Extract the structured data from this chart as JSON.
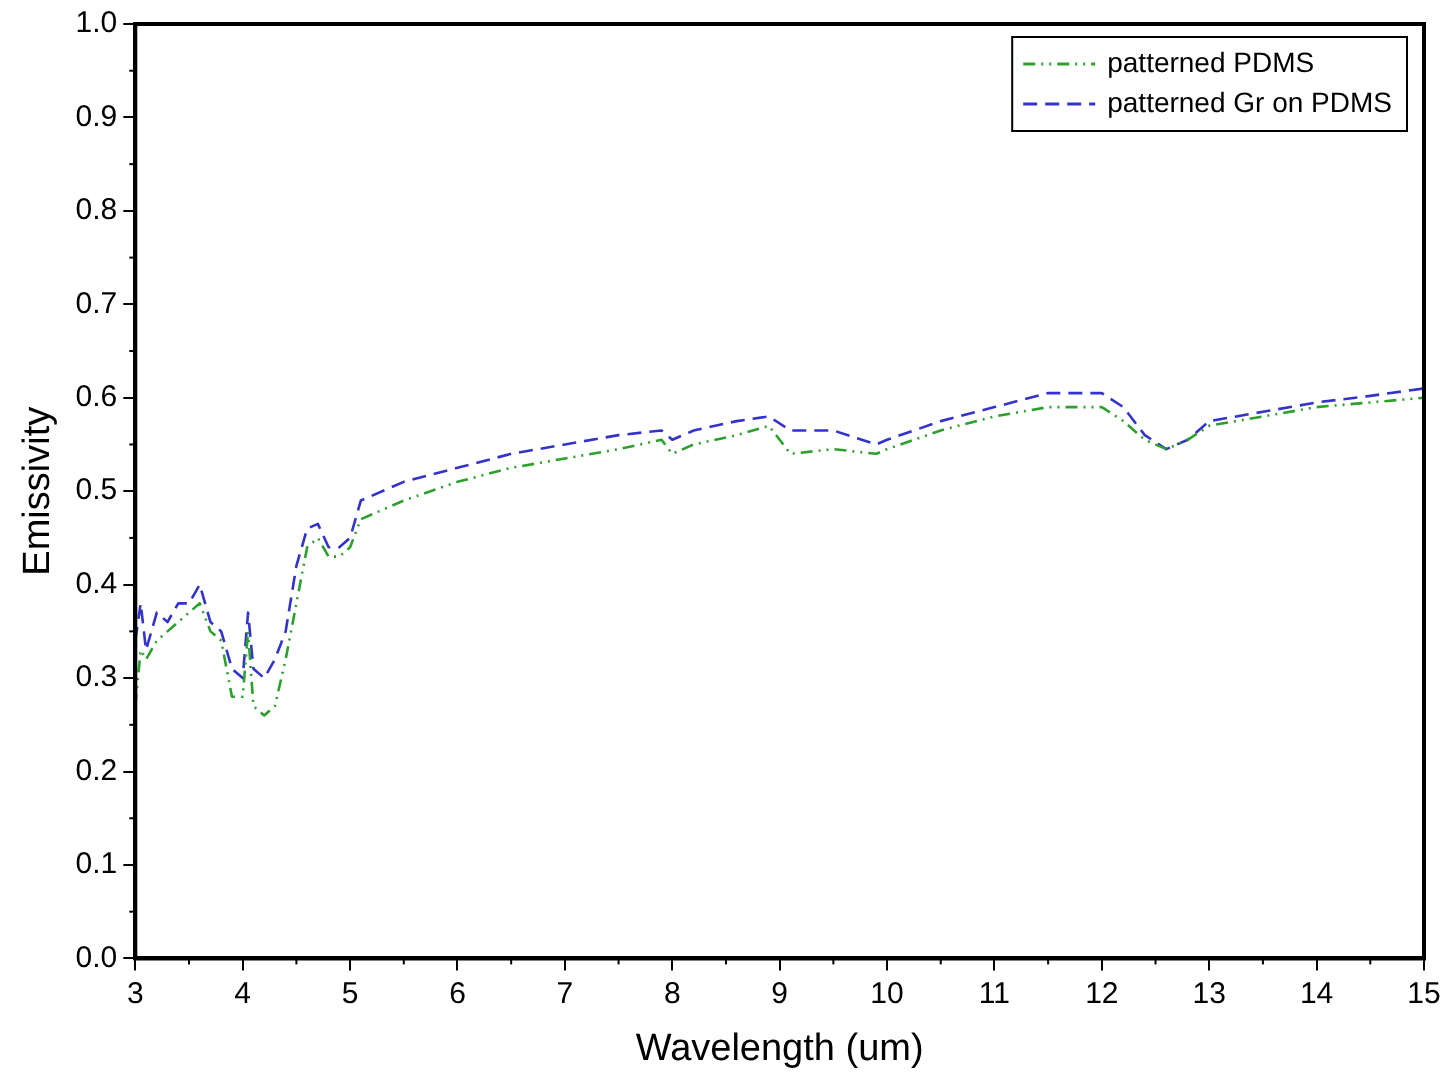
{
  "chart_data": {
    "type": "line",
    "xlabel": "Wavelength (um)",
    "ylabel": "Emissivity",
    "x": [
      3.0,
      3.05,
      3.1,
      3.2,
      3.3,
      3.4,
      3.5,
      3.6,
      3.7,
      3.8,
      3.9,
      4.0,
      4.05,
      4.1,
      4.2,
      4.3,
      4.4,
      4.5,
      4.6,
      4.7,
      4.8,
      4.9,
      5.0,
      5.1,
      5.5,
      6,
      6.5,
      7,
      7.5,
      7.9,
      8.0,
      8.2,
      8.6,
      8.9,
      9.1,
      9.5,
      9.9,
      10.0,
      10.5,
      11,
      11.5,
      12,
      12.2,
      12.4,
      12.6,
      12.8,
      13.0,
      13.5,
      14,
      14.5,
      15
    ],
    "series": [
      {
        "name": "patterned PDMS",
        "color": "#2ca02c",
        "line_style": "dotted",
        "values": [
          0.27,
          0.33,
          0.32,
          0.34,
          0.35,
          0.36,
          0.37,
          0.38,
          0.35,
          0.34,
          0.28,
          0.28,
          0.35,
          0.27,
          0.26,
          0.27,
          0.32,
          0.38,
          0.44,
          0.45,
          0.43,
          0.43,
          0.44,
          0.47,
          0.49,
          0.51,
          0.525,
          0.535,
          0.545,
          0.555,
          0.54,
          0.55,
          0.56,
          0.57,
          0.54,
          0.545,
          0.54,
          0.545,
          0.565,
          0.58,
          0.59,
          0.59,
          0.575,
          0.555,
          0.545,
          0.555,
          0.57,
          0.58,
          0.59,
          0.595,
          0.6
        ]
      },
      {
        "name": "patterned Gr on PDMS",
        "color": "#3333cc",
        "line_style": "dashed",
        "values": [
          0.34,
          0.38,
          0.33,
          0.37,
          0.36,
          0.38,
          0.38,
          0.4,
          0.36,
          0.35,
          0.31,
          0.3,
          0.37,
          0.31,
          0.3,
          0.32,
          0.35,
          0.42,
          0.46,
          0.465,
          0.44,
          0.44,
          0.45,
          0.49,
          0.51,
          0.525,
          0.54,
          0.55,
          0.56,
          0.565,
          0.555,
          0.565,
          0.575,
          0.58,
          0.565,
          0.565,
          0.55,
          0.555,
          0.575,
          0.59,
          0.605,
          0.605,
          0.59,
          0.56,
          0.545,
          0.555,
          0.575,
          0.585,
          0.595,
          0.602,
          0.61
        ]
      }
    ],
    "xlim": [
      3,
      15
    ],
    "xticks": [
      3,
      4,
      5,
      6,
      7,
      8,
      9,
      10,
      11,
      12,
      13,
      14,
      15
    ],
    "ylim": [
      0,
      1
    ],
    "yticks": [
      {
        "value": 0,
        "label": "0.0"
      },
      0.1,
      0.2,
      0.3,
      0.4,
      0.5,
      0.6,
      0.7,
      0.8,
      0.9,
      {
        "value": 1,
        "label": "1.0"
      }
    ],
    "grid": false,
    "legend": "top right",
    "marker": "none"
  }
}
